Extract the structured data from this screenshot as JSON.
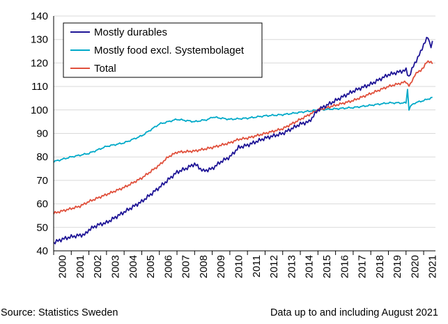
{
  "chart_data": {
    "type": "line",
    "xlabel": "",
    "ylabel": "",
    "ylim": [
      40,
      140
    ],
    "yticks": [
      40,
      50,
      60,
      70,
      80,
      90,
      100,
      110,
      120,
      130,
      140
    ],
    "xlim": [
      2000,
      2021.67
    ],
    "xticks": [
      "2000",
      "2001",
      "2002",
      "2003",
      "2004",
      "2005",
      "2006",
      "2007",
      "2008",
      "2009",
      "2010",
      "2011",
      "2012",
      "2013",
      "2014",
      "2015",
      "2016",
      "2017",
      "2018",
      "2019",
      "2020",
      "2021"
    ],
    "grid": "horizontal",
    "legend_position": "top-left",
    "series": [
      {
        "name": "Mostly durables",
        "color": "#1E1496",
        "noise": 0.9,
        "anchors": [
          [
            2000,
            43.5
          ],
          [
            2000.5,
            45
          ],
          [
            2001,
            46
          ],
          [
            2001.8,
            47
          ],
          [
            2002,
            49
          ],
          [
            2002.5,
            51
          ],
          [
            2003,
            52
          ],
          [
            2004,
            56.5
          ],
          [
            2005,
            61
          ],
          [
            2006,
            67
          ],
          [
            2007,
            73.5
          ],
          [
            2007.5,
            75
          ],
          [
            2008,
            77
          ],
          [
            2008.5,
            74
          ],
          [
            2009,
            75
          ],
          [
            2009.5,
            78
          ],
          [
            2010,
            80
          ],
          [
            2010.5,
            84
          ],
          [
            2011,
            85
          ],
          [
            2012,
            88
          ],
          [
            2013,
            90
          ],
          [
            2014,
            94
          ],
          [
            2014.5,
            95
          ],
          [
            2015,
            100
          ],
          [
            2016,
            104
          ],
          [
            2017,
            108
          ],
          [
            2018,
            111
          ],
          [
            2019,
            115
          ],
          [
            2020,
            117
          ],
          [
            2020.15,
            114
          ],
          [
            2020.5,
            120
          ],
          [
            2020.8,
            124
          ],
          [
            2021,
            128
          ],
          [
            2021.25,
            131
          ],
          [
            2021.4,
            127
          ],
          [
            2021.58,
            130
          ]
        ]
      },
      {
        "name": "Mostly food excl. Systembolaget",
        "color": "#00A9C8",
        "noise": 0.6,
        "anchors": [
          [
            2000,
            78
          ],
          [
            2001,
            80
          ],
          [
            2002,
            81.5
          ],
          [
            2003,
            84.5
          ],
          [
            2004,
            86
          ],
          [
            2005,
            89
          ],
          [
            2006,
            94
          ],
          [
            2006.5,
            95
          ],
          [
            2007,
            96
          ],
          [
            2008,
            95
          ],
          [
            2008.8,
            96
          ],
          [
            2009,
            97
          ],
          [
            2010,
            96
          ],
          [
            2011,
            96.5
          ],
          [
            2012,
            97.5
          ],
          [
            2013,
            98
          ],
          [
            2014,
            99
          ],
          [
            2015,
            100
          ],
          [
            2016,
            100.5
          ],
          [
            2017,
            101
          ],
          [
            2018,
            102
          ],
          [
            2019,
            103
          ],
          [
            2020,
            103
          ],
          [
            2020.1,
            110
          ],
          [
            2020.15,
            100
          ],
          [
            2020.3,
            102
          ],
          [
            2020.5,
            103
          ],
          [
            2021,
            104
          ],
          [
            2021.58,
            105.5
          ]
        ]
      },
      {
        "name": "Total",
        "color": "#E0503C",
        "noise": 0.6,
        "anchors": [
          [
            2000,
            56
          ],
          [
            2001,
            58
          ],
          [
            2001.5,
            59
          ],
          [
            2002,
            61
          ],
          [
            2003,
            64
          ],
          [
            2004,
            67
          ],
          [
            2005,
            71
          ],
          [
            2006,
            76.5
          ],
          [
            2006.5,
            80
          ],
          [
            2007,
            82
          ],
          [
            2008,
            82.5
          ],
          [
            2009,
            84
          ],
          [
            2010,
            86
          ],
          [
            2010.5,
            87.5
          ],
          [
            2011,
            88
          ],
          [
            2012,
            90
          ],
          [
            2013,
            92
          ],
          [
            2014,
            96
          ],
          [
            2015,
            100
          ],
          [
            2016,
            102
          ],
          [
            2017,
            104
          ],
          [
            2018,
            107
          ],
          [
            2019,
            110
          ],
          [
            2020,
            112
          ],
          [
            2020.2,
            110
          ],
          [
            2020.5,
            115
          ],
          [
            2021,
            118
          ],
          [
            2021.2,
            121
          ],
          [
            2021.58,
            119.5
          ]
        ]
      }
    ]
  },
  "footer": {
    "source": "Source: Statistics Sweden",
    "note": "Data up to and including August 2021"
  }
}
